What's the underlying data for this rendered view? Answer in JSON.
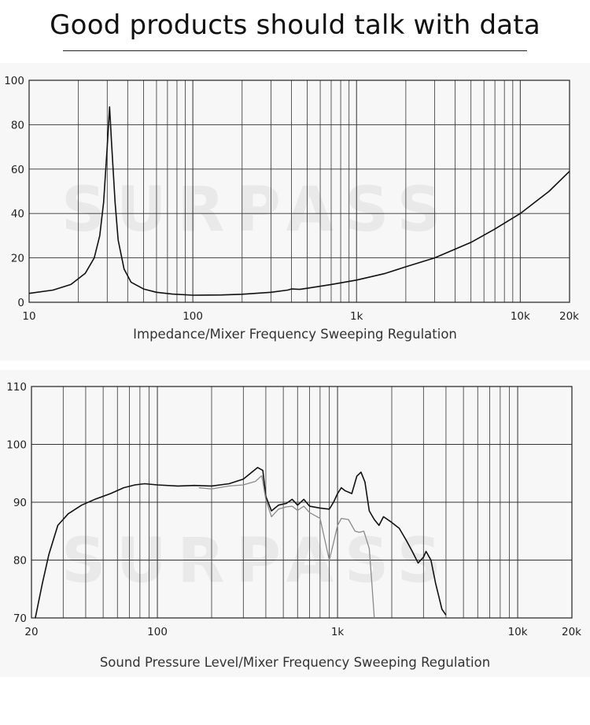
{
  "page": {
    "title": "Good products should talk with data",
    "watermark": "SURPASS"
  },
  "chart_data": [
    {
      "type": "line",
      "title": "",
      "caption": "Impedance/Mixer Frequency Sweeping Regulation",
      "xlabel": "",
      "ylabel": "",
      "xscale": "log",
      "xlim": [
        10,
        20000
      ],
      "ylim": [
        0,
        100
      ],
      "grid": true,
      "xtick_labels": [
        {
          "value": 10,
          "label": "10"
        },
        {
          "value": 100,
          "label": "100"
        },
        {
          "value": 1000,
          "label": "1k"
        },
        {
          "value": 10000,
          "label": "10k"
        },
        {
          "value": 20000,
          "label": "20k"
        }
      ],
      "ytick_labels": [
        {
          "value": 0,
          "label": "0"
        },
        {
          "value": 20,
          "label": "20"
        },
        {
          "value": 40,
          "label": "40"
        },
        {
          "value": 60,
          "label": "60"
        },
        {
          "value": 80,
          "label": "80"
        },
        {
          "value": 100,
          "label": "100"
        }
      ],
      "series": [
        {
          "color": "#111111",
          "x": [
            10,
            14,
            18,
            22,
            25,
            27,
            28.5,
            30,
            31,
            32,
            33.5,
            35,
            38,
            42,
            50,
            60,
            75,
            100,
            150,
            200,
            300,
            380,
            400,
            450,
            500,
            700,
            1000,
            1500,
            2000,
            3000,
            5000,
            7000,
            10000,
            15000,
            20000
          ],
          "y": [
            4,
            5.5,
            8,
            13,
            20,
            30,
            45,
            70,
            88,
            70,
            45,
            28,
            15,
            9,
            6,
            4.5,
            3.7,
            3.2,
            3.3,
            3.6,
            4.5,
            5.5,
            6,
            5.8,
            6.3,
            8,
            10,
            13,
            16,
            20,
            27,
            33,
            40,
            50,
            59
          ]
        }
      ]
    },
    {
      "type": "line",
      "title": "",
      "caption": "Sound Pressure Level/Mixer Frequency Sweeping Regulation",
      "xlabel": "",
      "ylabel": "",
      "xscale": "log",
      "xlim": [
        20,
        20000
      ],
      "ylim": [
        70,
        110
      ],
      "grid": true,
      "xtick_labels": [
        {
          "value": 20,
          "label": "20"
        },
        {
          "value": 100,
          "label": "100"
        },
        {
          "value": 1000,
          "label": "1k"
        },
        {
          "value": 10000,
          "label": "10k"
        },
        {
          "value": 20000,
          "label": "20k"
        }
      ],
      "ytick_labels": [
        {
          "value": 70,
          "label": "70"
        },
        {
          "value": 80,
          "label": "80"
        },
        {
          "value": 90,
          "label": "90"
        },
        {
          "value": 100,
          "label": "100"
        },
        {
          "value": 110,
          "label": "110"
        }
      ],
      "series": [
        {
          "color": "#111111",
          "x": [
            21,
            23,
            25,
            28,
            32,
            38,
            45,
            55,
            65,
            75,
            85,
            100,
            130,
            160,
            200,
            250,
            300,
            360,
            385,
            400,
            430,
            470,
            520,
            560,
            600,
            650,
            700,
            800,
            900,
            950,
            1000,
            1050,
            1100,
            1200,
            1280,
            1350,
            1420,
            1500,
            1600,
            1700,
            1800,
            2000,
            2200,
            2400,
            2600,
            2800,
            3000,
            3100,
            3300,
            3500,
            3800,
            4000
          ],
          "y": [
            70,
            76,
            81,
            86,
            88,
            89.5,
            90.5,
            91.5,
            92.5,
            93,
            93.2,
            93,
            92.8,
            92.9,
            92.8,
            93.2,
            94,
            96,
            95.5,
            91,
            88.5,
            89.5,
            89.8,
            90.5,
            89.5,
            90.5,
            89.3,
            89,
            88.8,
            90,
            91.5,
            92.5,
            92,
            91.5,
            94.5,
            95.2,
            93.5,
            88.5,
            87,
            86,
            87.5,
            86.5,
            85.5,
            83.5,
            81.5,
            79.5,
            80.5,
            81.5,
            80,
            76,
            71.5,
            70.5
          ]
        },
        {
          "color": "#8a8a8a",
          "x": [
            170,
            200,
            250,
            300,
            350,
            380,
            400,
            430,
            470,
            520,
            560,
            600,
            650,
            700,
            800,
            900,
            950,
            1000,
            1050,
            1150,
            1250,
            1320,
            1400,
            1500,
            1550,
            1600
          ],
          "y": [
            92.5,
            92.3,
            92.8,
            93,
            93.6,
            94.6,
            90.5,
            87.5,
            88.8,
            89.2,
            89.3,
            88.6,
            89.3,
            88.2,
            87.2,
            80,
            83,
            86,
            87.2,
            87,
            85,
            84.8,
            85,
            82,
            76,
            70
          ]
        }
      ]
    }
  ]
}
